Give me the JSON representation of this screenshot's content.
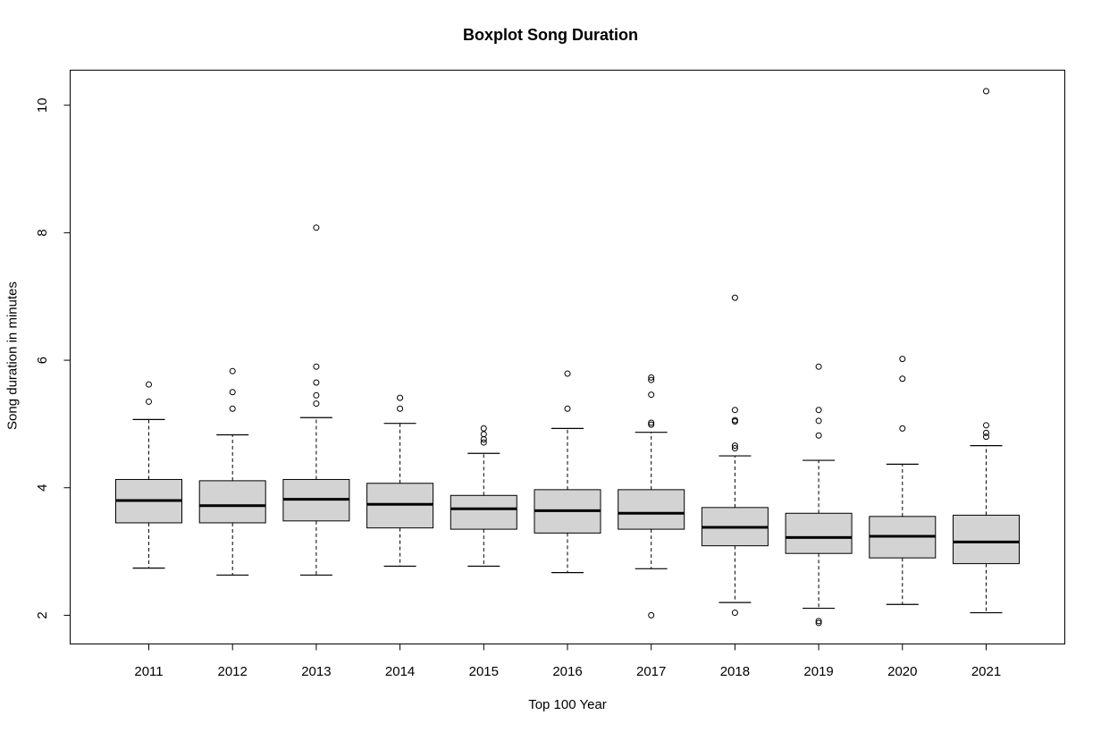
{
  "chart_data": {
    "type": "box",
    "title": "Boxplot Song Duration",
    "xlabel": "Top 100 Year",
    "ylabel": "Song duration in minutes",
    "ylim": [
      1.55,
      10.55
    ],
    "yticks": [
      2,
      4,
      6,
      8,
      10
    ],
    "categories": [
      "2011",
      "2012",
      "2013",
      "2014",
      "2015",
      "2016",
      "2017",
      "2018",
      "2019",
      "2020",
      "2021"
    ],
    "boxes": [
      {
        "whisker_low": 2.74,
        "q1": 3.45,
        "median": 3.8,
        "q3": 4.13,
        "whisker_high": 5.07,
        "outliers": [
          5.35,
          5.62
        ]
      },
      {
        "whisker_low": 2.63,
        "q1": 3.45,
        "median": 3.72,
        "q3": 4.11,
        "whisker_high": 4.83,
        "outliers": [
          5.24,
          5.5,
          5.83
        ]
      },
      {
        "whisker_low": 2.63,
        "q1": 3.48,
        "median": 3.82,
        "q3": 4.13,
        "whisker_high": 5.1,
        "outliers": [
          5.32,
          5.45,
          5.65,
          5.9,
          8.08
        ]
      },
      {
        "whisker_low": 2.77,
        "q1": 3.37,
        "median": 3.74,
        "q3": 4.07,
        "whisker_high": 5.01,
        "outliers": [
          5.24,
          5.41
        ]
      },
      {
        "whisker_low": 2.77,
        "q1": 3.35,
        "median": 3.67,
        "q3": 3.88,
        "whisker_high": 4.54,
        "outliers": [
          4.71,
          4.76,
          4.84,
          4.93
        ]
      },
      {
        "whisker_low": 2.67,
        "q1": 3.29,
        "median": 3.64,
        "q3": 3.97,
        "whisker_high": 4.93,
        "outliers": [
          5.24,
          5.79
        ]
      },
      {
        "whisker_low": 2.73,
        "q1": 3.35,
        "median": 3.6,
        "q3": 3.97,
        "whisker_high": 4.87,
        "outliers": [
          2.0,
          4.99,
          5.02,
          5.46,
          5.69,
          5.73
        ]
      },
      {
        "whisker_low": 2.2,
        "q1": 3.09,
        "median": 3.38,
        "q3": 3.69,
        "whisker_high": 4.5,
        "outliers": [
          2.04,
          4.62,
          4.66,
          5.04,
          5.06,
          5.22,
          6.98
        ]
      },
      {
        "whisker_low": 2.11,
        "q1": 2.97,
        "median": 3.22,
        "q3": 3.6,
        "whisker_high": 4.43,
        "outliers": [
          1.88,
          1.91,
          4.82,
          5.05,
          5.22,
          5.9
        ]
      },
      {
        "whisker_low": 2.17,
        "q1": 2.9,
        "median": 3.24,
        "q3": 3.55,
        "whisker_high": 4.37,
        "outliers": [
          4.93,
          5.71,
          6.02
        ]
      },
      {
        "whisker_low": 2.04,
        "q1": 2.81,
        "median": 3.15,
        "q3": 3.57,
        "whisker_high": 4.66,
        "outliers": [
          4.8,
          4.86,
          4.98,
          10.22
        ]
      }
    ],
    "box_fill": "#d3d3d3",
    "grid": false,
    "legend": "none"
  }
}
